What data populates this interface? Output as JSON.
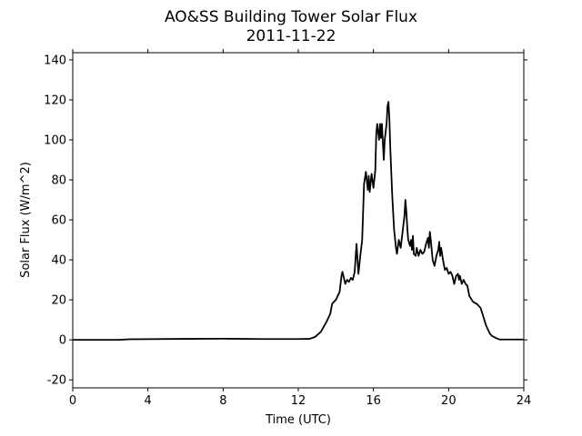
{
  "chart_data": {
    "type": "line",
    "title": "AO&SS Building Tower Solar Flux",
    "subtitle": "2011-11-22",
    "xlabel": "Time (UTC)",
    "ylabel": "Solar Flux (W/m^2)",
    "color": "#000000",
    "xlim": [
      0,
      24
    ],
    "xticks": [
      0,
      4,
      8,
      12,
      16,
      20,
      24
    ],
    "ylim": [
      -24,
      143.6
    ],
    "yticks": [
      -20,
      0,
      20,
      40,
      60,
      80,
      100,
      120,
      140
    ],
    "x": [
      0,
      2.5,
      3,
      6,
      8,
      10,
      12,
      12.6,
      12.9,
      13.2,
      13.5,
      13.7,
      13.8,
      14.0,
      14.2,
      14.3,
      14.35,
      14.5,
      14.6,
      14.7,
      14.8,
      14.9,
      15.0,
      15.1,
      15.2,
      15.3,
      15.4,
      15.5,
      15.6,
      15.7,
      15.75,
      15.8,
      15.9,
      16.0,
      16.1,
      16.15,
      16.2,
      16.3,
      16.35,
      16.4,
      16.45,
      16.55,
      16.6,
      16.7,
      16.75,
      16.8,
      16.85,
      16.9,
      17.0,
      17.1,
      17.2,
      17.25,
      17.35,
      17.45,
      17.55,
      17.65,
      17.7,
      17.75,
      17.8,
      17.85,
      17.95,
      18.0,
      18.05,
      18.1,
      18.15,
      18.25,
      18.3,
      18.4,
      18.5,
      18.6,
      18.7,
      18.8,
      18.9,
      18.95,
      19.0,
      19.05,
      19.15,
      19.25,
      19.35,
      19.45,
      19.5,
      19.55,
      19.6,
      19.7,
      19.8,
      19.9,
      20.0,
      20.1,
      20.2,
      20.3,
      20.4,
      20.5,
      20.55,
      20.6,
      20.7,
      20.8,
      20.9,
      21.0,
      21.1,
      21.3,
      21.5,
      21.7,
      21.8,
      21.9,
      22.0,
      22.1,
      22.2,
      22.3,
      22.5,
      22.7,
      24
    ],
    "values": [
      0,
      0,
      0.3,
      0.5,
      0.6,
      0.4,
      0.4,
      0.5,
      1.5,
      4,
      9,
      13,
      18,
      20,
      24,
      32,
      34,
      28,
      30,
      29,
      31,
      30,
      34,
      48,
      33,
      42,
      50,
      78,
      84,
      75,
      82,
      74,
      83,
      76,
      85,
      103,
      108,
      100,
      108,
      101,
      108,
      90,
      100,
      108,
      117,
      119,
      110,
      95,
      72,
      55,
      46,
      43,
      50,
      46,
      54,
      62,
      70,
      64,
      56,
      50,
      47,
      50,
      45,
      52,
      43,
      42,
      46,
      42,
      45,
      43,
      44,
      48,
      51,
      46,
      54,
      50,
      40,
      37,
      42,
      45,
      49,
      42,
      46,
      40,
      35,
      36,
      33,
      34,
      32,
      28,
      32,
      33,
      30,
      32,
      28,
      30,
      28,
      27,
      22,
      19,
      18,
      16,
      13,
      10,
      7,
      5,
      3,
      2,
      1,
      0.2,
      0.2
    ]
  }
}
